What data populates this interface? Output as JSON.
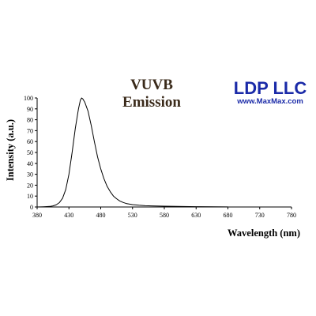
{
  "chart_data": {
    "type": "line",
    "title_lines": [
      "VUVB",
      "Emission"
    ],
    "brand": {
      "name": "LDP LLC",
      "url": "www.MaxMax.com"
    },
    "xlabel": "Wavelength (nm)",
    "ylabel": "Intensity (a.u.)",
    "xlim": [
      380,
      780
    ],
    "ylim": [
      0,
      100
    ],
    "x_ticks": [
      380,
      430,
      480,
      530,
      580,
      630,
      680,
      730,
      780
    ],
    "y_ticks": [
      0,
      10,
      20,
      30,
      40,
      50,
      60,
      70,
      80,
      90,
      100
    ],
    "grid": false,
    "legend": "none",
    "line_color": "#000000",
    "series": [
      {
        "x": [
          380,
          390,
          400,
          405,
          410,
          415,
          420,
          425,
          430,
          435,
          440,
          445,
          448,
          450,
          452,
          455,
          460,
          465,
          470,
          475,
          480,
          485,
          490,
          495,
          500,
          505,
          510,
          515,
          520,
          530,
          540,
          550,
          560,
          580,
          600,
          630,
          680
        ],
        "y": [
          0,
          0.2,
          0.5,
          1,
          2,
          4,
          8,
          16,
          30,
          50,
          72,
          90,
          98,
          100,
          99,
          96,
          88,
          75,
          60,
          46,
          35,
          26,
          19,
          14,
          10,
          7.5,
          5.5,
          4.2,
          3.2,
          2.2,
          1.6,
          1.2,
          1,
          0.7,
          0.5,
          0.3,
          0.1
        ]
      }
    ]
  }
}
